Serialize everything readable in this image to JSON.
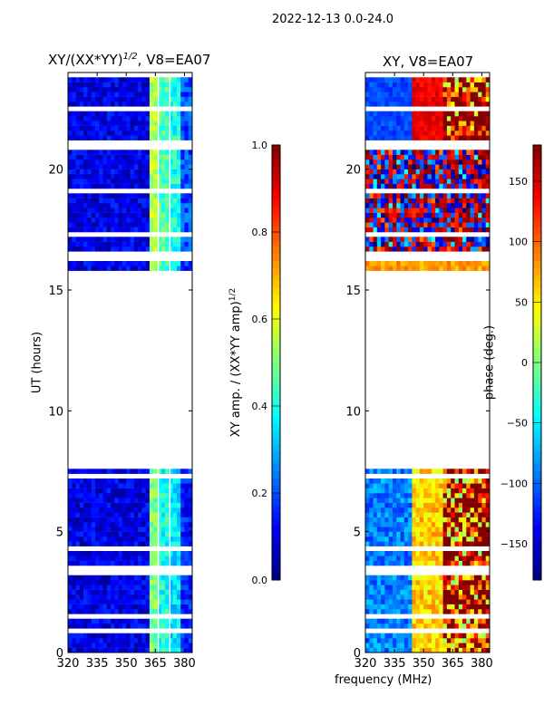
{
  "suptitle": "2022-12-13 0.0-24.0",
  "xlabel": "frequency (MHz)",
  "chart_data": [
    {
      "type": "heatmap",
      "title": "XY/(XX*YY)^1/2, V8=EA07",
      "title_main": "XY/(XX*YY)",
      "title_sup": "1/2",
      "title_tail": ", V8=EA07",
      "xlabel": "frequency (MHz)",
      "ylabel": "UT (hours)",
      "xlim": [
        320,
        384
      ],
      "ylim": [
        0,
        24
      ],
      "xticks": [
        "320",
        "335",
        "350",
        "365",
        "380"
      ],
      "xtick_values": [
        320,
        335,
        350,
        365,
        380
      ],
      "yticks": [
        "0",
        "5",
        "10",
        "15",
        "20"
      ],
      "ytick_values": [
        0,
        5,
        10,
        15,
        20
      ],
      "colorbar": {
        "label_main": "XY amp. / (XX*YY amp)",
        "label_sup": "1/2",
        "range": [
          0,
          1
        ],
        "ticks": [
          "0.0",
          "0.2",
          "0.4",
          "0.6",
          "0.8",
          "1.0"
        ],
        "tick_values": [
          0,
          0.2,
          0.4,
          0.6,
          0.8,
          1.0
        ],
        "colormap": "jet"
      },
      "data_intervals_hours": [
        [
          0,
          7.5
        ],
        [
          15.8,
          24
        ]
      ],
      "flagged_rows_hours": [
        [
          0.85,
          0.95
        ],
        [
          1.35,
          1.5
        ],
        [
          3.3,
          3.55
        ],
        [
          4.25,
          4.4
        ],
        [
          5.15,
          5.25
        ],
        [
          5.6,
          5.65
        ],
        [
          6.15,
          6.25
        ],
        [
          7.3,
          7.35
        ],
        [
          16.2,
          16.5
        ],
        [
          17.2,
          17.3
        ],
        [
          17.95,
          18.05
        ],
        [
          19.05,
          19.15
        ],
        [
          20.15,
          20.25
        ],
        [
          20.8,
          21.15
        ],
        [
          22.45,
          22.55
        ],
        [
          23.55,
          23.65
        ],
        [
          23.85,
          23.9
        ]
      ],
      "flagged_channels_mhz": [
        366.5,
        372.5
      ],
      "bands": [
        {
          "freq_range": [
            320,
            362
          ],
          "value": 0.1
        },
        {
          "freq_range": [
            362,
            366
          ],
          "value": 0.5
        },
        {
          "freq_range": [
            367,
            372
          ],
          "value": 0.4
        },
        {
          "freq_range": [
            373,
            378
          ],
          "value": 0.35
        },
        {
          "freq_range": [
            378,
            384
          ],
          "value": 0.15
        }
      ]
    },
    {
      "type": "heatmap",
      "title": "XY, V8=EA07",
      "xlabel": "frequency (MHz)",
      "ylabel": "",
      "xlim": [
        320,
        384
      ],
      "ylim": [
        0,
        24
      ],
      "xticks": [
        "320",
        "335",
        "350",
        "365",
        "380"
      ],
      "xtick_values": [
        320,
        335,
        350,
        365,
        380
      ],
      "yticks": [
        "0",
        "5",
        "10",
        "15",
        "20"
      ],
      "ytick_values": [
        0,
        5,
        10,
        15,
        20
      ],
      "colorbar": {
        "label": "phase (deg.)",
        "range": [
          -180,
          180
        ],
        "ticks": [
          "−150",
          "−100",
          "−50",
          "0",
          "50",
          "100",
          "150"
        ],
        "tick_values": [
          -150,
          -100,
          -50,
          0,
          50,
          100,
          150
        ],
        "colormap": "jet"
      },
      "data_intervals_hours": [
        [
          0,
          7.5
        ],
        [
          15.8,
          24
        ]
      ],
      "noisy_interval_hours": [
        16.3,
        21
      ],
      "bands": [
        {
          "freq_range": [
            320,
            345
          ],
          "value": -90
        },
        {
          "freq_range": [
            345,
            360
          ],
          "value": 60
        },
        {
          "freq_range": [
            360,
            384
          ],
          "value": 150
        }
      ]
    }
  ]
}
